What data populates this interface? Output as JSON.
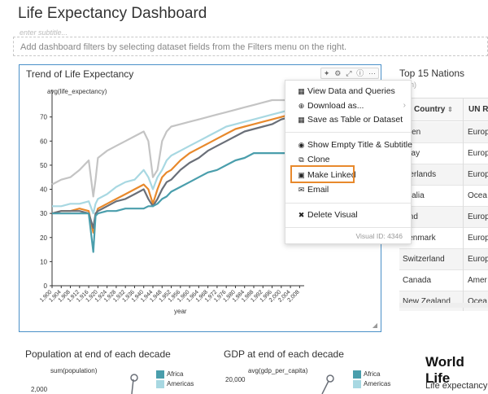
{
  "dashboard": {
    "title": "Life Expectancy Dashboard",
    "subtitle_placeholder": "enter subtitle...",
    "filter_hint": "Add dashboard filters by selecting dataset fields from the Filters menu on the right."
  },
  "trend_card": {
    "title": "Trend of Life Expectancy",
    "toolbar_icons": [
      "sparkle-icon",
      "gear-icon",
      "expand-icon",
      "info-icon",
      "more-icon"
    ]
  },
  "context_menu": {
    "items": [
      {
        "icon": "table-icon",
        "label": "View Data and Queries"
      },
      {
        "icon": "download-icon",
        "label": "Download as..."
      },
      {
        "icon": "save-table-icon",
        "label": "Save as Table or Dataset"
      },
      {
        "icon": "eye-icon",
        "label": "Show Empty Title & Subtitle"
      },
      {
        "icon": "clone-icon",
        "label": "Clone"
      },
      {
        "icon": "link-icon",
        "label": "Make Linked"
      },
      {
        "icon": "email-icon",
        "label": "Email"
      },
      {
        "icon": "delete-icon",
        "label": "Delete Visual"
      }
    ],
    "visual_id": "Visual ID: 4346",
    "highlighted_item": "Make Linked",
    "highlight_color": "#e8892c"
  },
  "top_nations": {
    "title": "Top 15 Nations",
    "subtitle_fragment": "n)",
    "columns": [
      "Country",
      "UN Re"
    ],
    "rows": [
      {
        "country": "eden",
        "region": "Europ"
      },
      {
        "country": "rway",
        "region": "Europ"
      },
      {
        "country": "therlands",
        "region": "Europ"
      },
      {
        "country": "stralia",
        "region": "Ocea"
      },
      {
        "country": "land",
        "region": "Europ"
      },
      {
        "country": "Denmark",
        "region": "Europ"
      },
      {
        "country": "Switzerland",
        "region": "Europ"
      },
      {
        "country": "Canada",
        "region": "Amer"
      },
      {
        "country": "New Zealand",
        "region": "Ocea"
      }
    ]
  },
  "population_card": {
    "title": "Population at end of each decade",
    "ylabel": "sum(population)",
    "tick": "2,000",
    "legend": [
      "Africa",
      "Americas"
    ]
  },
  "gdp_card": {
    "title": "GDP at end of each decade",
    "ylabel": "avg(gdp_per_capita)",
    "tick": "20,000",
    "legend": [
      "Africa",
      "Americas"
    ]
  },
  "world_card": {
    "title": "World Life",
    "text": "Life expectancy"
  },
  "colors": {
    "accent": "#4a90c8",
    "series_light_gray": "#c4c4c4",
    "series_light_blue": "#a8d8e2",
    "series_orange": "#e8892c",
    "series_dark_gray": "#6a6f78",
    "series_teal": "#4a9eac"
  },
  "chart_data": {
    "type": "line",
    "title": "Trend of Life Expectancy",
    "xlabel": "year",
    "ylabel": "avg(life_expectancy)",
    "ylim": [
      0,
      78
    ],
    "yticks": [
      0,
      10,
      20,
      30,
      40,
      50,
      60,
      70
    ],
    "xticks": [
      "1,900",
      "1,904",
      "1,908",
      "1,912",
      "1,916",
      "1,920",
      "1,924",
      "1,928",
      "1,932",
      "1,936",
      "1,940",
      "1,944",
      "1,948",
      "1,952",
      "1,956",
      "1,960",
      "1,964",
      "1,968",
      "1,972",
      "1,976",
      "1,980",
      "1,984",
      "1,988",
      "1,992",
      "1,996",
      "2,000",
      "2,004",
      "2,008"
    ],
    "grid": false,
    "x": [
      1900,
      1904,
      1908,
      1912,
      1916,
      1918,
      1919,
      1920,
      1924,
      1928,
      1932,
      1936,
      1940,
      1942,
      1944,
      1946,
      1948,
      1950,
      1952,
      1956,
      1960,
      1964,
      1968,
      1972,
      1976,
      1980,
      1984,
      1988,
      1992,
      1996,
      2000,
      2004,
      2008
    ],
    "series": [
      {
        "color": "#c4c4c4",
        "values": [
          42,
          44,
          45,
          48,
          52,
          37,
          44,
          53,
          56,
          58,
          60,
          62,
          64,
          60,
          45,
          48,
          60,
          64,
          66,
          67,
          68,
          69,
          70,
          71,
          72,
          73,
          74,
          75,
          76,
          77,
          77,
          77,
          77
        ]
      },
      {
        "color": "#a8d8e2",
        "values": [
          33,
          33,
          34,
          34,
          35,
          30,
          34,
          36,
          38,
          41,
          43,
          44,
          48,
          45,
          40,
          45,
          48,
          52,
          54,
          56,
          58,
          60,
          62,
          64,
          66,
          67,
          68,
          69,
          70,
          71,
          72,
          73,
          74
        ]
      },
      {
        "color": "#e8892c",
        "values": [
          30,
          31,
          31,
          32,
          31,
          22,
          29,
          32,
          34,
          36,
          38,
          40,
          42,
          40,
          34,
          40,
          45,
          47,
          48,
          52,
          55,
          57,
          59,
          61,
          63,
          65,
          66,
          67,
          68,
          69,
          70,
          71,
          72
        ]
      },
      {
        "color": "#6a6f78",
        "values": [
          30,
          31,
          31,
          31,
          30,
          24,
          30,
          31,
          33,
          35,
          36,
          38,
          40,
          36,
          33,
          36,
          40,
          43,
          44,
          48,
          51,
          53,
          56,
          58,
          60,
          62,
          64,
          65,
          66,
          67,
          69,
          70,
          71
        ]
      },
      {
        "color": "#4a9eac",
        "values": [
          30,
          30,
          30,
          30,
          30,
          14,
          29,
          30,
          31,
          31,
          32,
          32,
          32,
          33,
          33,
          34,
          36,
          37,
          39,
          41,
          43,
          45,
          47,
          48,
          50,
          52,
          53,
          55,
          55,
          55,
          55,
          55,
          56
        ]
      }
    ]
  }
}
